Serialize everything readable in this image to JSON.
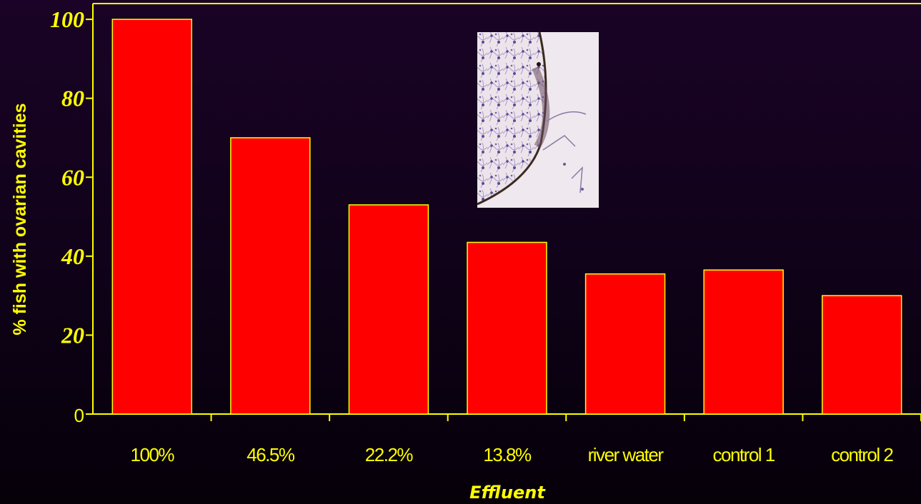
{
  "chart_data": {
    "type": "bar",
    "categories": [
      "100%",
      "46.5%",
      "22.2%",
      "13.8%",
      "river water",
      "control 1",
      "control 2"
    ],
    "values": [
      100,
      70,
      53,
      43.5,
      35.5,
      36.5,
      30
    ],
    "xlabel": "Effluent",
    "ylabel": "% fish with ovarian cavities",
    "ylim": [
      0,
      104
    ],
    "yticks": [
      "0",
      "20",
      "40",
      "60",
      "80",
      "100"
    ],
    "grid": false,
    "bar_color": "#ff0000",
    "edge_color": "#ffff00",
    "axis_color": "#ffff00",
    "inset_image": "histology-micrograph"
  }
}
